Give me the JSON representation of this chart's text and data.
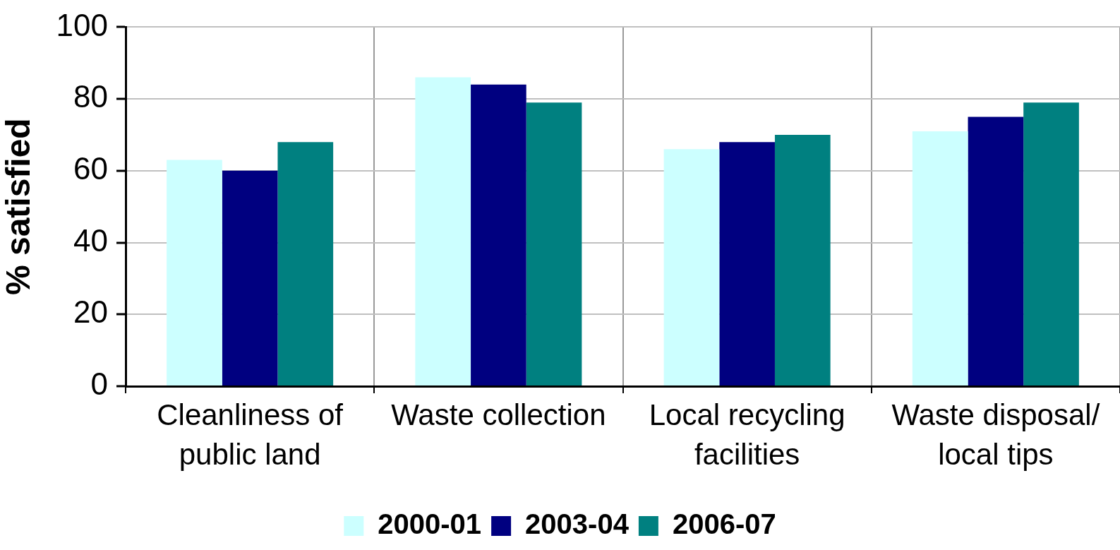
{
  "chart_data": {
    "type": "bar",
    "ylabel": "% satisfied",
    "categories": [
      "Cleanliness of public land",
      "Waste collection",
      "Local recycling facilities",
      "Waste disposal/ local tips"
    ],
    "series": [
      {
        "name": "2000-01",
        "color": "#ccffff",
        "values": [
          63,
          86,
          66,
          71
        ]
      },
      {
        "name": "2003-04",
        "color": "#000080",
        "values": [
          60,
          84,
          68,
          75
        ]
      },
      {
        "name": "2006-07",
        "color": "#008080",
        "values": [
          68,
          79,
          70,
          79
        ]
      }
    ],
    "ylim": [
      0,
      100
    ],
    "yticks": [
      0,
      20,
      40,
      60,
      80,
      100
    ],
    "grid": true,
    "legend": "bottom"
  }
}
